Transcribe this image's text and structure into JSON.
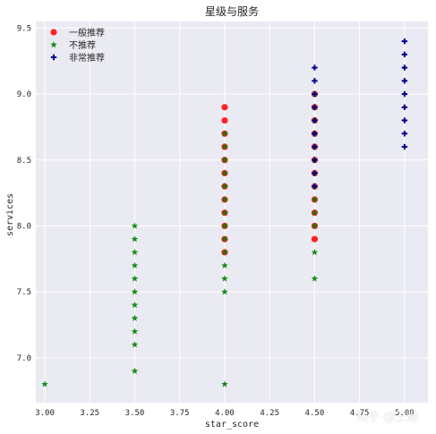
{
  "chart_data": {
    "type": "scatter",
    "title": "星级与服务",
    "xlabel": "star_score",
    "ylabel": "services",
    "xlim": [
      2.95,
      5.13
    ],
    "ylim": [
      6.66,
      9.55
    ],
    "xticks": [
      "3.00",
      "3.25",
      "3.50",
      "3.75",
      "4.00",
      "4.25",
      "4.50",
      "4.75",
      "5.00"
    ],
    "yticks": [
      "7.0",
      "7.5",
      "8.0",
      "8.5",
      "9.0",
      "9.5"
    ],
    "grid": true,
    "legend_position": "top-left",
    "series": [
      {
        "name": "一般推荐",
        "marker": "circle",
        "color": "#ff0000",
        "points": [
          [
            4.0,
            7.8
          ],
          [
            4.0,
            7.9
          ],
          [
            4.0,
            8.0
          ],
          [
            4.0,
            8.1
          ],
          [
            4.0,
            8.2
          ],
          [
            4.0,
            8.3
          ],
          [
            4.0,
            8.4
          ],
          [
            4.0,
            8.5
          ],
          [
            4.0,
            8.6
          ],
          [
            4.0,
            8.7
          ],
          [
            4.0,
            8.8
          ],
          [
            4.0,
            8.9
          ],
          [
            4.5,
            7.9
          ],
          [
            4.5,
            8.0
          ],
          [
            4.5,
            8.1
          ],
          [
            4.5,
            8.2
          ],
          [
            4.5,
            8.3
          ],
          [
            4.5,
            8.4
          ],
          [
            4.5,
            8.5
          ],
          [
            4.5,
            8.6
          ],
          [
            4.5,
            8.7
          ],
          [
            4.5,
            8.8
          ],
          [
            4.5,
            8.9
          ],
          [
            4.5,
            9.0
          ]
        ]
      },
      {
        "name": "不推荐",
        "marker": "star",
        "color": "#008000",
        "points": [
          [
            3.0,
            6.8
          ],
          [
            3.5,
            6.9
          ],
          [
            3.5,
            7.1
          ],
          [
            3.5,
            7.2
          ],
          [
            3.5,
            7.3
          ],
          [
            3.5,
            7.4
          ],
          [
            3.5,
            7.5
          ],
          [
            3.5,
            7.6
          ],
          [
            3.5,
            7.7
          ],
          [
            3.5,
            7.8
          ],
          [
            3.5,
            7.9
          ],
          [
            3.5,
            8.0
          ],
          [
            4.0,
            6.8
          ],
          [
            4.0,
            7.5
          ],
          [
            4.0,
            7.6
          ],
          [
            4.0,
            7.7
          ],
          [
            4.0,
            7.8
          ],
          [
            4.0,
            7.9
          ],
          [
            4.0,
            8.0
          ],
          [
            4.0,
            8.1
          ],
          [
            4.0,
            8.2
          ],
          [
            4.0,
            8.3
          ],
          [
            4.0,
            8.4
          ],
          [
            4.0,
            8.5
          ],
          [
            4.0,
            8.6
          ],
          [
            4.0,
            8.7
          ],
          [
            4.5,
            7.6
          ],
          [
            4.5,
            7.8
          ],
          [
            4.5,
            8.0
          ],
          [
            4.5,
            8.1
          ],
          [
            4.5,
            8.2
          ],
          [
            4.5,
            8.3
          ],
          [
            4.5,
            8.4
          ],
          [
            4.5,
            8.5
          ],
          [
            4.5,
            8.6
          ],
          [
            4.5,
            8.7
          ],
          [
            4.5,
            8.8
          ],
          [
            4.5,
            8.9
          ],
          [
            4.5,
            9.0
          ]
        ]
      },
      {
        "name": "非常推荐",
        "marker": "plus",
        "color": "#00008b",
        "points": [
          [
            4.5,
            8.3
          ],
          [
            4.5,
            8.4
          ],
          [
            4.5,
            8.5
          ],
          [
            4.5,
            8.6
          ],
          [
            4.5,
            8.7
          ],
          [
            4.5,
            8.8
          ],
          [
            4.5,
            8.9
          ],
          [
            4.5,
            9.0
          ],
          [
            4.5,
            9.1
          ],
          [
            4.5,
            9.2
          ],
          [
            5.0,
            8.6
          ],
          [
            5.0,
            8.7
          ],
          [
            5.0,
            8.8
          ],
          [
            5.0,
            8.9
          ],
          [
            5.0,
            9.0
          ],
          [
            5.0,
            9.1
          ],
          [
            5.0,
            9.2
          ],
          [
            5.0,
            9.3
          ],
          [
            5.0,
            9.4
          ]
        ]
      }
    ]
  },
  "watermark": "知乎 @王超"
}
